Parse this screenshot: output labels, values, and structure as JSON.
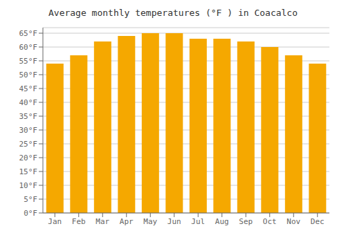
{
  "chart_data": {
    "type": "bar",
    "title": "Average monthly temperatures (°F ) in Coacalco",
    "categories": [
      "Jan",
      "Feb",
      "Mar",
      "Apr",
      "May",
      "Jun",
      "Jul",
      "Aug",
      "Sep",
      "Oct",
      "Nov",
      "Dec"
    ],
    "values": [
      54,
      57,
      62,
      64,
      65,
      65,
      63,
      63,
      62,
      60,
      57,
      54
    ],
    "color": "#F5A800",
    "ylim": [
      0,
      67
    ],
    "yticks": [
      {
        "value": 0,
        "label": "0°F"
      },
      {
        "value": 5,
        "label": "5°F"
      },
      {
        "value": 10,
        "label": "10°F"
      },
      {
        "value": 15,
        "label": "15°F"
      },
      {
        "value": 20,
        "label": "20°F"
      },
      {
        "value": 25,
        "label": "25°F"
      },
      {
        "value": 30,
        "label": "30°F"
      },
      {
        "value": 35,
        "label": "35°F"
      },
      {
        "value": 40,
        "label": "40°F"
      },
      {
        "value": 45,
        "label": "45°F"
      },
      {
        "value": 50,
        "label": "50°F"
      },
      {
        "value": 55,
        "label": "55°F"
      },
      {
        "value": 60,
        "label": "60°F"
      },
      {
        "value": 65,
        "label": "65°F"
      }
    ],
    "grid": true
  }
}
